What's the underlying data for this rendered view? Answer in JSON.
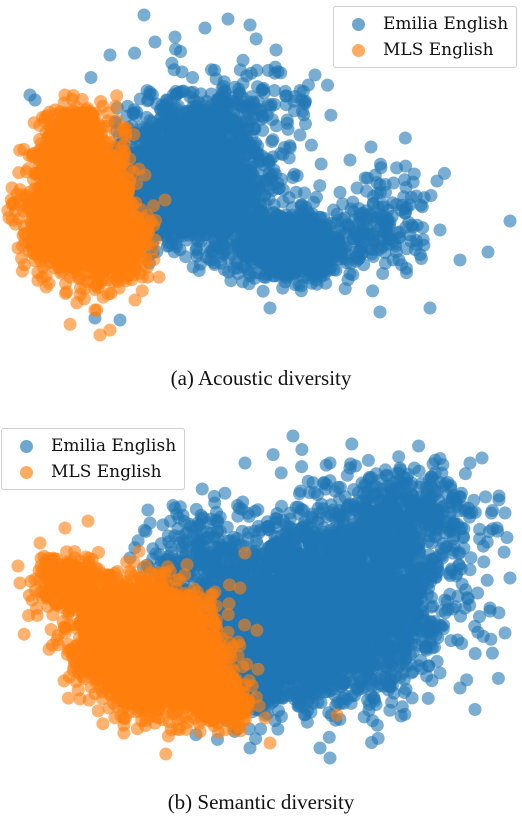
{
  "colors": {
    "emilia": "#1f77b4",
    "mls": "#ff7f0e"
  },
  "chart_data": [
    {
      "type": "scatter",
      "title": "",
      "xlabel": "",
      "ylabel": "",
      "grid": false,
      "axes_visible": false,
      "legend_position": "top-right",
      "caption": "(a)  Acoustic diversity",
      "xlim": [
        0,
        522
      ],
      "ylim": [
        -345,
        0
      ],
      "series": [
        {
          "name": "Emilia English",
          "color": "#1f77b4",
          "clusters": [
            {
              "center": [
                190,
                -180
              ],
              "spread": [
                65,
                55
              ],
              "count": 2400
            },
            {
              "center": [
                290,
                -245
              ],
              "spread": [
                55,
                28
              ],
              "count": 900
            },
            {
              "center": [
                380,
                -225
              ],
              "spread": [
                45,
                45
              ],
              "count": 160
            },
            {
              "center": [
                230,
                -110
              ],
              "spread": [
                70,
                40
              ],
              "count": 220
            }
          ],
          "points": [
            [
              144,
              -15
            ],
            [
              228,
              -19
            ],
            [
              205,
              -28
            ],
            [
              110,
              -55
            ],
            [
              175,
              -37
            ],
            [
              155,
              -42
            ],
            [
              276,
              -50
            ],
            [
              315,
              -75
            ],
            [
              437,
              -181
            ],
            [
              510,
              -221
            ],
            [
              488,
              -252
            ],
            [
              430,
              -308
            ],
            [
              380,
              -312
            ],
            [
              270,
              -308
            ],
            [
              120,
              -320
            ],
            [
              95,
              -318
            ],
            [
              250,
              -25
            ],
            [
              300,
              -135
            ],
            [
              350,
              -160
            ],
            [
              410,
              -205
            ],
            [
              460,
              -260
            ],
            [
              440,
              -230
            ],
            [
              30,
              -95
            ],
            [
              35,
              -100
            ]
          ]
        },
        {
          "name": "MLS English",
          "color": "#ff7f0e",
          "clusters": [
            {
              "center": [
                80,
                -210
              ],
              "spread": [
                42,
                55
              ],
              "count": 2600
            },
            {
              "center": [
                75,
                -135
              ],
              "spread": [
                28,
                25
              ],
              "count": 250
            },
            {
              "center": [
                120,
                -245
              ],
              "spread": [
                25,
                30
              ],
              "count": 300
            }
          ],
          "points": [
            [
              100,
              -335
            ],
            [
              115,
              -340
            ],
            [
              110,
              -330
            ],
            [
              65,
              -95
            ],
            [
              55,
              -110
            ],
            [
              18,
              -248
            ],
            [
              155,
              -240
            ],
            [
              165,
              -200
            ],
            [
              145,
              -175
            ],
            [
              135,
              -300
            ],
            [
              95,
              -310
            ]
          ]
        }
      ]
    },
    {
      "type": "scatter",
      "title": "",
      "xlabel": "",
      "ylabel": "",
      "grid": false,
      "axes_visible": false,
      "legend_position": "top-left",
      "caption": "(b)  Semantic diversity",
      "xlim": [
        0,
        522
      ],
      "ylim": [
        -363,
        0
      ],
      "series": [
        {
          "name": "Emilia English",
          "color": "#1f77b4",
          "clusters": [
            {
              "center": [
                330,
                -200
              ],
              "spread": [
                95,
                75
              ],
              "count": 3200
            },
            {
              "center": [
                260,
                -240
              ],
              "spread": [
                60,
                55
              ],
              "count": 900
            },
            {
              "center": [
                400,
                -110
              ],
              "spread": [
                70,
                45
              ],
              "count": 500
            },
            {
              "center": [
                200,
                -160
              ],
              "spread": [
                45,
                55
              ],
              "count": 300
            }
          ],
          "points": [
            [
              293,
              -28
            ],
            [
              245,
              -55
            ],
            [
              470,
              -55
            ],
            [
              482,
              -50
            ],
            [
              505,
              -105
            ],
            [
              497,
              -120
            ],
            [
              510,
              -170
            ],
            [
              490,
              -200
            ],
            [
              505,
              -225
            ],
            [
              460,
              -280
            ],
            [
              440,
              -265
            ],
            [
              330,
              -350
            ],
            [
              272,
              -357
            ],
            [
              320,
              -340
            ],
            [
              250,
              -340
            ],
            [
              175,
              -100
            ],
            [
              150,
              -115
            ],
            [
              130,
              -150
            ],
            [
              400,
              -80
            ],
            [
              330,
              -55
            ],
            [
              350,
              -60
            ]
          ]
        },
        {
          "name": "MLS English",
          "color": "#ff7f0e",
          "clusters": [
            {
              "center": [
                150,
                -240
              ],
              "spread": [
                60,
                48
              ],
              "count": 3800,
              "rotation": 32
            },
            {
              "center": [
                70,
                -175
              ],
              "spread": [
                28,
                22
              ],
              "count": 350
            },
            {
              "center": [
                220,
                -295
              ],
              "spread": [
                28,
                20
              ],
              "count": 300
            }
          ],
          "points": [
            [
              18,
              -158
            ],
            [
              20,
              -175
            ],
            [
              88,
              -113
            ],
            [
              65,
              -120
            ],
            [
              40,
              -135
            ],
            [
              245,
              -145
            ],
            [
              240,
              -180
            ],
            [
              230,
              -235
            ],
            [
              265,
              -310
            ],
            [
              270,
              -335
            ],
            [
              337,
              -307
            ],
            [
              155,
              -315
            ],
            [
              140,
              -300
            ],
            [
              100,
              -280
            ]
          ]
        }
      ]
    }
  ]
}
